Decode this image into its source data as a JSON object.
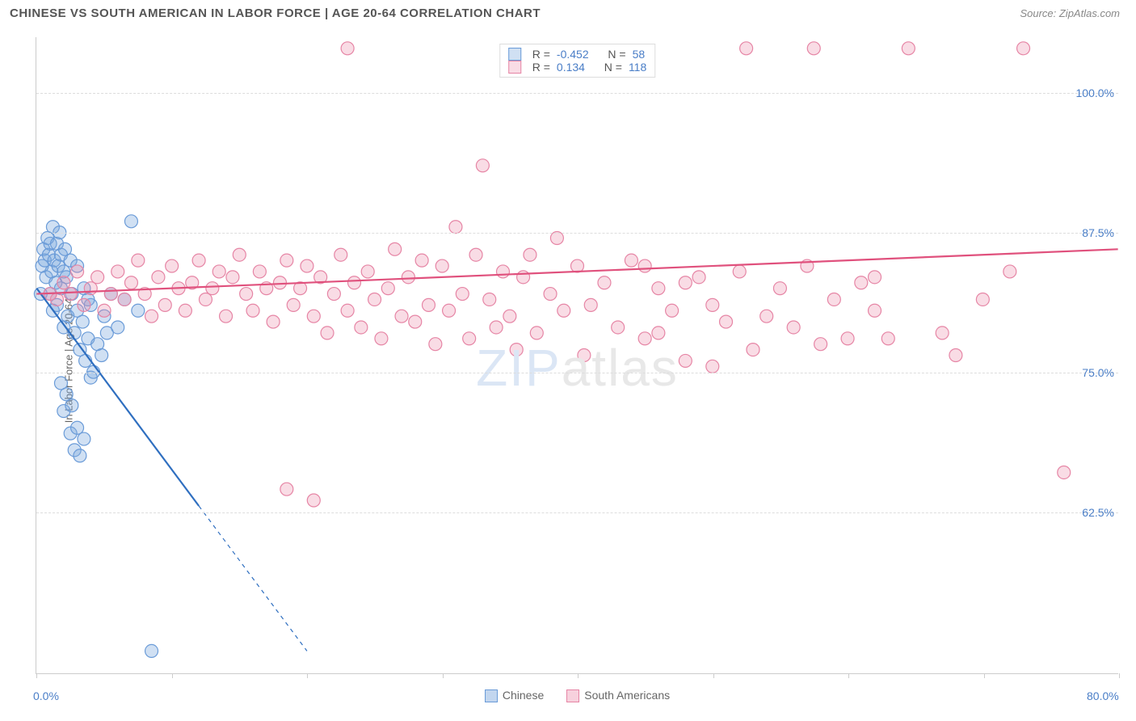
{
  "header": {
    "title": "CHINESE VS SOUTH AMERICAN IN LABOR FORCE | AGE 20-64 CORRELATION CHART",
    "source": "Source: ZipAtlas.com"
  },
  "watermark": {
    "part1": "ZIP",
    "part2": "atlas"
  },
  "chart": {
    "type": "scatter",
    "ylabel": "In Labor Force | Age 20-64",
    "xlim": [
      0,
      80
    ],
    "ylim": [
      48,
      105
    ],
    "xticks": [
      0,
      10,
      20,
      30,
      40,
      50,
      60,
      70,
      80
    ],
    "xtick_labels": {
      "0": "0.0%",
      "80": "80.0%"
    },
    "yticks": [
      62.5,
      75.0,
      87.5,
      100.0
    ],
    "ytick_labels": [
      "62.5%",
      "75.0%",
      "87.5%",
      "100.0%"
    ],
    "grid_color": "#dddddd",
    "background_color": "#ffffff",
    "axis_color": "#cccccc",
    "marker_radius": 8,
    "marker_stroke_width": 1.2,
    "series": [
      {
        "name": "Chinese",
        "color_fill": "rgba(120,165,220,0.35)",
        "color_stroke": "#6a9bd8",
        "r_label": "R =",
        "r_value": "-0.452",
        "n_label": "N =",
        "n_value": "58",
        "regression": {
          "x1": 0,
          "y1": 82.5,
          "x2": 20,
          "y2": 50,
          "solid_until_x": 12,
          "color": "#2f6fc0",
          "width": 2.2
        },
        "points": [
          [
            0.3,
            82.0
          ],
          [
            0.4,
            84.5
          ],
          [
            0.5,
            86.0
          ],
          [
            0.6,
            85.0
          ],
          [
            0.7,
            83.5
          ],
          [
            0.8,
            87.0
          ],
          [
            0.9,
            85.5
          ],
          [
            1.0,
            82.0
          ],
          [
            1.0,
            86.5
          ],
          [
            1.1,
            84.0
          ],
          [
            1.2,
            88.0
          ],
          [
            1.2,
            80.5
          ],
          [
            1.3,
            85.0
          ],
          [
            1.4,
            83.0
          ],
          [
            1.5,
            86.5
          ],
          [
            1.5,
            81.0
          ],
          [
            1.6,
            84.5
          ],
          [
            1.7,
            87.5
          ],
          [
            1.8,
            82.5
          ],
          [
            1.8,
            85.5
          ],
          [
            2.0,
            84.0
          ],
          [
            2.0,
            79.0
          ],
          [
            2.1,
            86.0
          ],
          [
            2.2,
            83.5
          ],
          [
            2.3,
            80.0
          ],
          [
            2.5,
            85.0
          ],
          [
            2.6,
            82.0
          ],
          [
            2.8,
            78.5
          ],
          [
            3.0,
            84.5
          ],
          [
            3.0,
            80.5
          ],
          [
            3.2,
            77.0
          ],
          [
            3.4,
            79.5
          ],
          [
            3.5,
            82.5
          ],
          [
            3.6,
            76.0
          ],
          [
            3.8,
            78.0
          ],
          [
            4.0,
            81.0
          ],
          [
            4.0,
            74.5
          ],
          [
            1.8,
            74.0
          ],
          [
            2.0,
            71.5
          ],
          [
            2.2,
            73.0
          ],
          [
            2.5,
            69.5
          ],
          [
            2.6,
            72.0
          ],
          [
            2.8,
            68.0
          ],
          [
            3.0,
            70.0
          ],
          [
            3.2,
            67.5
          ],
          [
            3.5,
            69.0
          ],
          [
            4.2,
            75.0
          ],
          [
            4.5,
            77.5
          ],
          [
            5.0,
            80.0
          ],
          [
            5.2,
            78.5
          ],
          [
            5.5,
            82.0
          ],
          [
            6.0,
            79.0
          ],
          [
            6.5,
            81.5
          ],
          [
            7.0,
            88.5
          ],
          [
            7.5,
            80.5
          ],
          [
            8.5,
            50.0
          ],
          [
            4.8,
            76.5
          ],
          [
            3.8,
            81.5
          ]
        ]
      },
      {
        "name": "South Americans",
        "color_fill": "rgba(235,140,170,0.30)",
        "color_stroke": "#e685a5",
        "r_label": "R =",
        "r_value": "0.134",
        "n_label": "N =",
        "n_value": "118",
        "regression": {
          "x1": 0,
          "y1": 82.0,
          "x2": 80,
          "y2": 86.0,
          "solid_until_x": 80,
          "color": "#e0517d",
          "width": 2.2
        },
        "points": [
          [
            1.0,
            82.0
          ],
          [
            1.5,
            81.5
          ],
          [
            2.0,
            83.0
          ],
          [
            2.5,
            82.0
          ],
          [
            3.0,
            84.0
          ],
          [
            3.5,
            81.0
          ],
          [
            4.0,
            82.5
          ],
          [
            4.5,
            83.5
          ],
          [
            5.0,
            80.5
          ],
          [
            5.5,
            82.0
          ],
          [
            6.0,
            84.0
          ],
          [
            6.5,
            81.5
          ],
          [
            7.0,
            83.0
          ],
          [
            7.5,
            85.0
          ],
          [
            8.0,
            82.0
          ],
          [
            8.5,
            80.0
          ],
          [
            9.0,
            83.5
          ],
          [
            9.5,
            81.0
          ],
          [
            10.0,
            84.5
          ],
          [
            10.5,
            82.5
          ],
          [
            11.0,
            80.5
          ],
          [
            11.5,
            83.0
          ],
          [
            12.0,
            85.0
          ],
          [
            12.5,
            81.5
          ],
          [
            13.0,
            82.5
          ],
          [
            13.5,
            84.0
          ],
          [
            14.0,
            80.0
          ],
          [
            14.5,
            83.5
          ],
          [
            15.0,
            85.5
          ],
          [
            15.5,
            82.0
          ],
          [
            16.0,
            80.5
          ],
          [
            16.5,
            84.0
          ],
          [
            17.0,
            82.5
          ],
          [
            17.5,
            79.5
          ],
          [
            18.0,
            83.0
          ],
          [
            18.5,
            85.0
          ],
          [
            19.0,
            81.0
          ],
          [
            19.5,
            82.5
          ],
          [
            20.0,
            84.5
          ],
          [
            20.5,
            80.0
          ],
          [
            21.0,
            83.5
          ],
          [
            21.5,
            78.5
          ],
          [
            22.0,
            82.0
          ],
          [
            22.5,
            85.5
          ],
          [
            23.0,
            80.5
          ],
          [
            23.5,
            83.0
          ],
          [
            24.0,
            79.0
          ],
          [
            24.5,
            84.0
          ],
          [
            25.0,
            81.5
          ],
          [
            25.5,
            78.0
          ],
          [
            26.0,
            82.5
          ],
          [
            26.5,
            86.0
          ],
          [
            27.0,
            80.0
          ],
          [
            27.5,
            83.5
          ],
          [
            28.0,
            79.5
          ],
          [
            28.5,
            85.0
          ],
          [
            29.0,
            81.0
          ],
          [
            29.5,
            77.5
          ],
          [
            30.0,
            84.5
          ],
          [
            30.5,
            80.5
          ],
          [
            31.0,
            88.0
          ],
          [
            31.5,
            82.0
          ],
          [
            32.0,
            78.0
          ],
          [
            32.5,
            85.5
          ],
          [
            33.0,
            93.5
          ],
          [
            33.5,
            81.5
          ],
          [
            23.0,
            104.0
          ],
          [
            34.0,
            79.0
          ],
          [
            34.5,
            84.0
          ],
          [
            35.0,
            80.0
          ],
          [
            35.5,
            77.0
          ],
          [
            36.0,
            83.5
          ],
          [
            36.5,
            85.5
          ],
          [
            37.0,
            78.5
          ],
          [
            38.0,
            82.0
          ],
          [
            38.5,
            87.0
          ],
          [
            39.0,
            80.5
          ],
          [
            40.0,
            84.5
          ],
          [
            40.5,
            76.5
          ],
          [
            41.0,
            81.0
          ],
          [
            42.0,
            83.0
          ],
          [
            43.0,
            79.0
          ],
          [
            44.0,
            85.0
          ],
          [
            45.0,
            78.0
          ],
          [
            46.0,
            82.5
          ],
          [
            47.0,
            80.5
          ],
          [
            48.0,
            76.0
          ],
          [
            49.0,
            83.5
          ],
          [
            50.0,
            81.0
          ],
          [
            51.0,
            79.5
          ],
          [
            52.0,
            84.0
          ],
          [
            53.0,
            77.0
          ],
          [
            54.0,
            80.0
          ],
          [
            55.0,
            82.5
          ],
          [
            52.5,
            104.0
          ],
          [
            48.0,
            83.0
          ],
          [
            50.0,
            75.5
          ],
          [
            46.0,
            78.5
          ],
          [
            18.5,
            64.5
          ],
          [
            20.5,
            63.5
          ],
          [
            56.0,
            79.0
          ],
          [
            57.0,
            84.5
          ],
          [
            57.5,
            104.0
          ],
          [
            58.0,
            77.5
          ],
          [
            59.0,
            81.5
          ],
          [
            60.0,
            78.0
          ],
          [
            61.0,
            83.0
          ],
          [
            62.0,
            80.5
          ],
          [
            63.0,
            78.0
          ],
          [
            64.5,
            104.0
          ],
          [
            67.0,
            78.5
          ],
          [
            68.0,
            76.5
          ],
          [
            70.0,
            81.5
          ],
          [
            72.0,
            84.0
          ],
          [
            73.0,
            104.0
          ],
          [
            76.0,
            66.0
          ],
          [
            62.0,
            83.5
          ],
          [
            45.0,
            84.5
          ]
        ]
      }
    ]
  },
  "bottom_legend": [
    {
      "label": "Chinese",
      "fill": "rgba(120,165,220,0.45)",
      "stroke": "#6a9bd8"
    },
    {
      "label": "South Americans",
      "fill": "rgba(235,140,170,0.40)",
      "stroke": "#e685a5"
    }
  ]
}
